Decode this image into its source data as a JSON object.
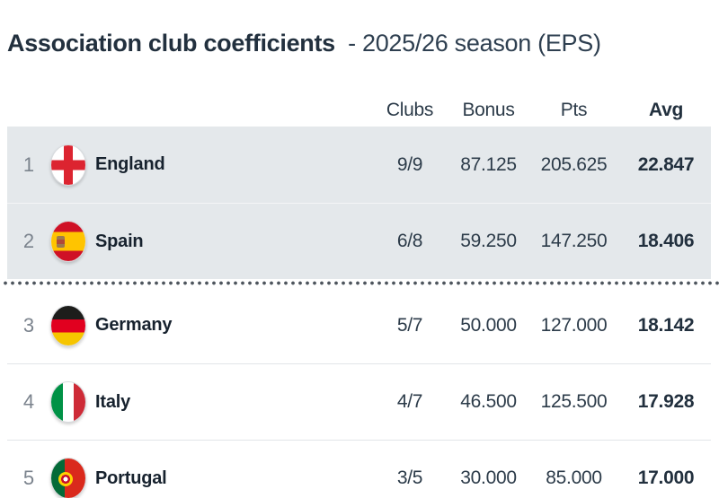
{
  "title": {
    "main": "Association club coefficients",
    "suffix": "- 2025/26 season (EPS)"
  },
  "table": {
    "headers": [
      {
        "label": "Clubs",
        "active": false
      },
      {
        "label": "Bonus",
        "active": false
      },
      {
        "label": "Pts",
        "active": false
      },
      {
        "label": "Avg",
        "active": true
      }
    ],
    "rows": [
      {
        "rank": "1",
        "country": "England",
        "flag": "england",
        "clubs": "9/9",
        "bonus": "87.125",
        "pts": "205.625",
        "avg": "22.847",
        "highlighted": true
      },
      {
        "rank": "2",
        "country": "Spain",
        "flag": "spain",
        "clubs": "6/8",
        "bonus": "59.250",
        "pts": "147.250",
        "avg": "18.406",
        "highlighted": true
      },
      {
        "rank": "3",
        "country": "Germany",
        "flag": "germany",
        "clubs": "5/7",
        "bonus": "50.000",
        "pts": "127.000",
        "avg": "18.142",
        "highlighted": false
      },
      {
        "rank": "4",
        "country": "Italy",
        "flag": "italy",
        "clubs": "4/7",
        "bonus": "46.500",
        "pts": "125.500",
        "avg": "17.928",
        "highlighted": false
      },
      {
        "rank": "5",
        "country": "Portugal",
        "flag": "portugal",
        "clubs": "3/5",
        "bonus": "30.000",
        "pts": "85.000",
        "avg": "17.000",
        "highlighted": false
      }
    ],
    "cutoff_after_rank": 2
  },
  "colors": {
    "highlight_row_bg": "#e4e8eb",
    "title_text": "#22303e",
    "header_text": "#8f969e",
    "value_text": "#2c3b49",
    "divider_dot": "#4e555d",
    "row_border": "#e2e5e8"
  }
}
